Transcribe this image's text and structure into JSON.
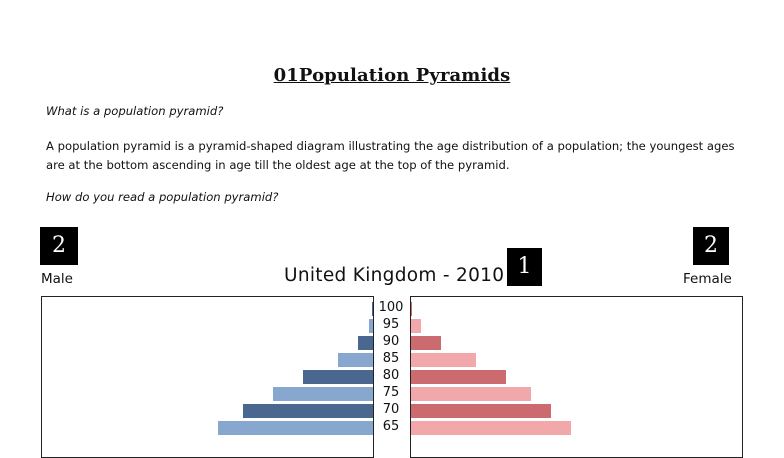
{
  "document": {
    "title": "01Population Pyramids",
    "question1": "What is a population pyramid?",
    "paragraph1": "A population pyramid is a pyramid-shaped diagram illustrating the age distribution of a population; the youngest ages are at the bottom ascending in age till the oldest age at the top of the pyramid.",
    "question2": "How do you read a population pyramid?"
  },
  "badges": {
    "left": "2",
    "right": "2",
    "middle": "1"
  },
  "figure": {
    "male_label": "Male",
    "female_label": "Female",
    "chart_title": "United Kingdom - 2010"
  },
  "colors": {
    "male_dark": "#4a6790",
    "male_light": "#88a7cf",
    "female_dark": "#cc6b6f",
    "female_light": "#f2a8aa"
  },
  "chart_data": {
    "type": "bar",
    "orientation": "horizontal",
    "title": "United Kingdom - 2010",
    "categories": [
      "100",
      "95",
      "90",
      "85",
      "80",
      "75",
      "70",
      "65"
    ],
    "series": [
      {
        "name": "Male",
        "values": [
          0.01,
          0.08,
          0.3,
          0.7,
          1.4,
          2.0,
          2.6,
          3.1
        ]
      },
      {
        "name": "Female",
        "values": [
          0.02,
          0.2,
          0.6,
          1.3,
          1.9,
          2.4,
          2.8,
          3.2
        ]
      }
    ],
    "xlim": [
      0,
      6.6
    ],
    "grid": false,
    "legend": "none"
  }
}
